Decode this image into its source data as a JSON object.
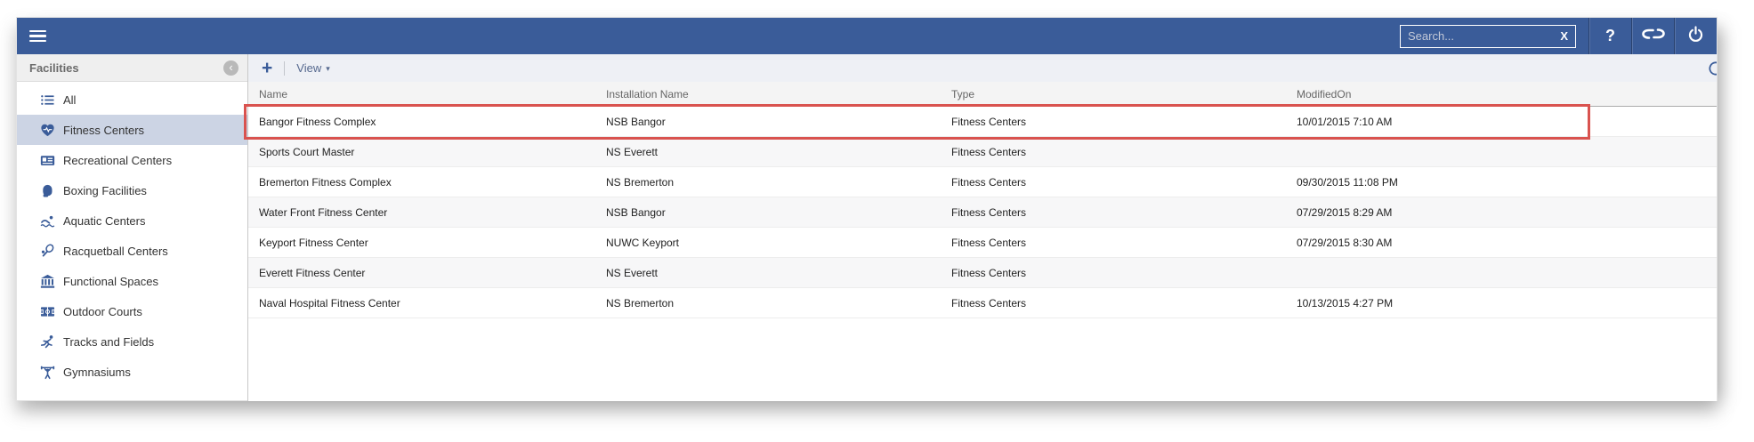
{
  "colors": {
    "topbar": "#3a5c99",
    "accent": "#3a5c99",
    "selected_item_bg": "#ccd4e4",
    "highlight_border": "#d9534f"
  },
  "topbar": {
    "search_placeholder": "Search...",
    "clear_label": "X",
    "help_label": "?"
  },
  "sidebar": {
    "title": "Facilities",
    "items": [
      {
        "id": "all",
        "label": "All",
        "icon": "list-icon",
        "selected": false
      },
      {
        "id": "fitness-centers",
        "label": "Fitness Centers",
        "icon": "heart-icon",
        "selected": true
      },
      {
        "id": "recreational-centers",
        "label": "Recreational Centers",
        "icon": "scoreboard-icon",
        "selected": false
      },
      {
        "id": "boxing-facilities",
        "label": "Boxing Facilities",
        "icon": "boxing-glove-icon",
        "selected": false
      },
      {
        "id": "aquatic-centers",
        "label": "Aquatic Centers",
        "icon": "swimmer-icon",
        "selected": false
      },
      {
        "id": "racquetball-centers",
        "label": "Racquetball Centers",
        "icon": "racquet-icon",
        "selected": false
      },
      {
        "id": "functional-spaces",
        "label": "Functional Spaces",
        "icon": "bank-icon",
        "selected": false
      },
      {
        "id": "outdoor-courts",
        "label": "Outdoor Courts",
        "icon": "court-icon",
        "selected": false
      },
      {
        "id": "tracks-and-fields",
        "label": "Tracks and Fields",
        "icon": "runner-icon",
        "selected": false
      },
      {
        "id": "gymnasiums",
        "label": "Gymnasiums",
        "icon": "weightlifter-icon",
        "selected": false
      }
    ]
  },
  "toolbar": {
    "add_label": "+",
    "view_label": "View"
  },
  "table": {
    "columns": [
      "Name",
      "Installation Name",
      "Type",
      "ModifiedOn"
    ],
    "rows": [
      {
        "cells": [
          "Bangor Fitness Complex",
          "NSB Bangor",
          "Fitness Centers",
          "10/01/2015 7:10 AM"
        ],
        "highlighted": true
      },
      {
        "cells": [
          "Sports Court Master",
          "NS Everett",
          "Fitness Centers",
          ""
        ],
        "highlighted": false
      },
      {
        "cells": [
          "Bremerton Fitness Complex",
          "NS Bremerton",
          "Fitness Centers",
          "09/30/2015 11:08 PM"
        ],
        "highlighted": false
      },
      {
        "cells": [
          "Water Front Fitness Center",
          "NSB Bangor",
          "Fitness Centers",
          "07/29/2015 8:29 AM"
        ],
        "highlighted": false
      },
      {
        "cells": [
          "Keyport Fitness Center",
          "NUWC Keyport",
          "Fitness Centers",
          "07/29/2015 8:30 AM"
        ],
        "highlighted": false
      },
      {
        "cells": [
          "Everett Fitness Center",
          "NS Everett",
          "Fitness Centers",
          ""
        ],
        "highlighted": false
      },
      {
        "cells": [
          "Naval Hospital Fitness Center",
          "NS Bremerton",
          "Fitness Centers",
          "10/13/2015 4:27 PM"
        ],
        "highlighted": false
      }
    ]
  }
}
